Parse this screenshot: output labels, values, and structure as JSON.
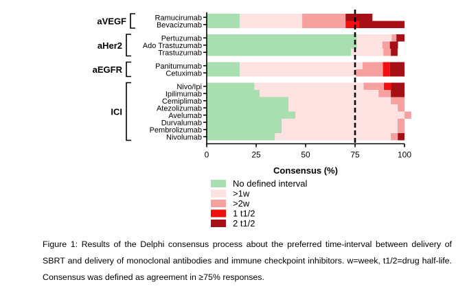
{
  "chart_data": {
    "type": "bar",
    "stacked": true,
    "orientation": "horizontal",
    "xlabel": "Consensus (%)",
    "xlim": [
      0,
      100
    ],
    "xticks": [
      0,
      25,
      50,
      75,
      100
    ],
    "tick_labels": [
      "0",
      "25",
      "50",
      "75",
      "100"
    ],
    "threshold": 75,
    "legend_position": "bottom",
    "colors": [
      "#a8deb0",
      "#fde2e2",
      "#f6a0a0",
      "#f01010",
      "#a50f15"
    ],
    "series": [
      {
        "name": "No defined interval"
      },
      {
        "name": ">1w"
      },
      {
        "name": ">2w"
      },
      {
        "name": "1 t1/2"
      },
      {
        "name": "2 t1/2"
      }
    ],
    "groups": [
      {
        "label": "aVEGF",
        "drugs": [
          {
            "name": "Ramucirumab",
            "values": [
              16.7,
              31.6,
              21.9,
              0,
              13.6
            ]
          },
          {
            "name": "Bevacizumab",
            "values": [
              16.7,
              31.6,
              21.9,
              6.9,
              22.9
            ]
          }
        ]
      },
      {
        "label": "aHer2",
        "drugs": [
          {
            "name": "Pertuzumab",
            "values": [
              75.9,
              17.6,
              2.4,
              0,
              4.1
            ]
          },
          {
            "name": "Ado Trastuzumab",
            "values": [
              75.9,
              12.9,
              3.8,
              0,
              4.1
            ]
          },
          {
            "name": "Trastuzumab",
            "values": [
              72.9,
              16.4,
              3.8,
              0,
              3.4
            ]
          }
        ]
      },
      {
        "label": "aEGFR",
        "drugs": [
          {
            "name": "Panitumumab",
            "values": [
              16.7,
              62.1,
              10.3,
              3.5,
              7.4
            ]
          },
          {
            "name": "Cetuximab",
            "values": [
              16.7,
              58.6,
              13.8,
              3.5,
              7.4
            ]
          }
        ]
      },
      {
        "label": "ICI",
        "drugs": [
          {
            "name": "Nivo/Ipi",
            "values": [
              24.1,
              55.2,
              10.3,
              3.5,
              6.9
            ]
          },
          {
            "name": "Ipilimumab",
            "values": [
              26.8,
              60.1,
              6.2,
              0,
              6.9
            ]
          },
          {
            "name": "Cemiplimab",
            "values": [
              41.4,
              51.7,
              6.9,
              0,
              0
            ]
          },
          {
            "name": "Atezolizumab",
            "values": [
              41.4,
              55.2,
              3.4,
              0,
              0
            ]
          },
          {
            "name": "Avelumab",
            "values": [
              44.8,
              55.2,
              3.4,
              0,
              0
            ]
          },
          {
            "name": "Durvalumab",
            "values": [
              37.9,
              58.6,
              3.5,
              0,
              0
            ]
          },
          {
            "name": "Pembrolizumab",
            "values": [
              37.9,
              58.6,
              3.5,
              0,
              0
            ]
          },
          {
            "name": "Nivolumab",
            "values": [
              34.5,
              58.6,
              3.5,
              0,
              3.4
            ]
          }
        ]
      }
    ]
  },
  "caption": "Figure 1: Results of the Delphi consensus process about the preferred time-interval between delivery of SBRT and delivery of monoclonal antibodies and immune checkpoint inhibitors. w=week, t1/2=drug half-life. Consensus was defined as agreement in ≥75% responses."
}
